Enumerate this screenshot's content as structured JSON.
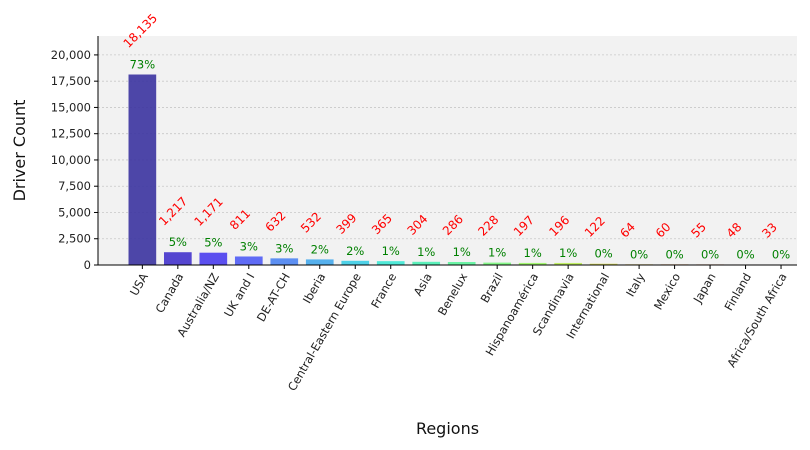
{
  "chart_data": {
    "type": "bar",
    "title": "",
    "xlabel": "Regions",
    "ylabel": "Driver Count",
    "categories": [
      "USA",
      "Canada",
      "Australia/NZ",
      "UK and I",
      "DE-AT-CH",
      "Iberia",
      "Central-Eastern Europe",
      "France",
      "Asia",
      "Benelux",
      "Brazil",
      "Hispanoamérica",
      "Scandinavia",
      "International",
      "Italy",
      "Mexico",
      "Japan",
      "Finland",
      "Africa/South Africa"
    ],
    "values": [
      18135,
      1217,
      1171,
      811,
      632,
      532,
      399,
      365,
      304,
      286,
      228,
      197,
      196,
      122,
      64,
      60,
      55,
      48,
      33
    ],
    "value_labels": [
      "18,135",
      "1,217",
      "1,171",
      "811",
      "632",
      "532",
      "399",
      "365",
      "304",
      "286",
      "228",
      "197",
      "196",
      "122",
      "64",
      "60",
      "55",
      "48",
      "33"
    ],
    "percent_labels": [
      "73%",
      "5%",
      "5%",
      "3%",
      "3%",
      "2%",
      "2%",
      "1%",
      "1%",
      "1%",
      "1%",
      "1%",
      "1%",
      "0%",
      "0%",
      "0%",
      "0%",
      "0%",
      "0%"
    ],
    "bar_colors": [
      "#3b33a0",
      "#4433cc",
      "#4a3dee",
      "#4f5cf5",
      "#4b84f2",
      "#44a8ec",
      "#3ccde6",
      "#3de8d4",
      "#4af0b4",
      "#5cf49c",
      "#79f77c",
      "#9af763",
      "#bbee55",
      "#d8dc4d",
      "#eec249",
      "#f79c41",
      "#f57435",
      "#ee4a28",
      "#e02b1e"
    ],
    "value_label_color": "#ff0000",
    "percent_label_color": "#008000",
    "ylim": [
      0,
      21800
    ],
    "yticks": [
      0,
      2500,
      5000,
      7500,
      10000,
      12500,
      15000,
      17500,
      20000
    ],
    "ytick_labels": [
      "0",
      "2,500",
      "5,000",
      "7,500",
      "10,000",
      "12,500",
      "15,000",
      "17,500",
      "20,000"
    ],
    "grid": true,
    "plot_background": "#f2f2f2"
  }
}
